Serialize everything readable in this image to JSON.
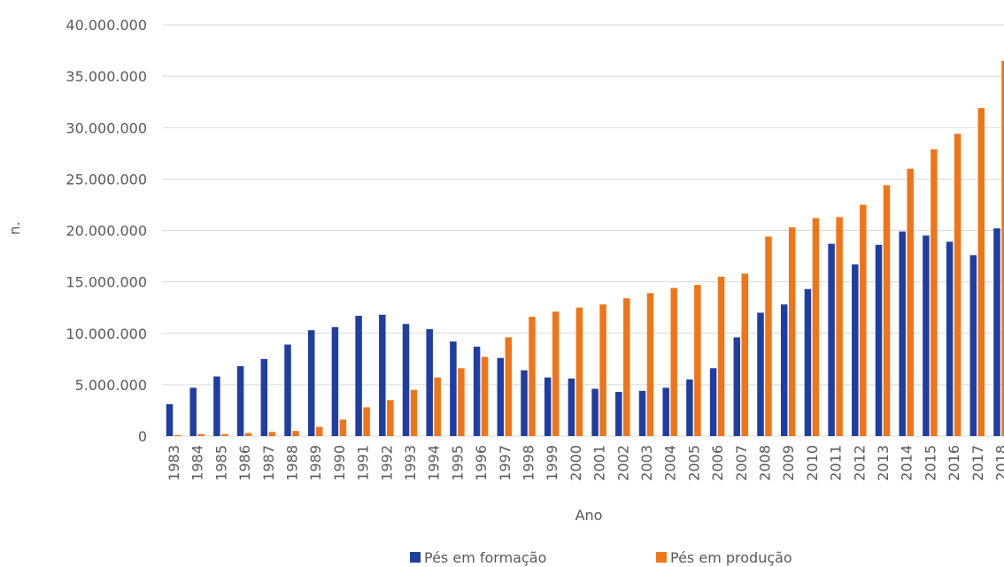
{
  "chart_data": {
    "type": "bar",
    "title": "",
    "xlabel": "Ano",
    "ylabel": "n.",
    "ylim": [
      0,
      40000000
    ],
    "yticks": [
      0,
      5000000,
      10000000,
      15000000,
      20000000,
      25000000,
      30000000,
      35000000,
      40000000
    ],
    "ytick_labels": [
      "0",
      "5.000.000",
      "10.000.000",
      "15.000.000",
      "20.000.000",
      "25.000.000",
      "30.000.000",
      "35.000.000",
      "40.000.000"
    ],
    "grid": true,
    "legend_position": "bottom",
    "categories": [
      "1983",
      "1984",
      "1985",
      "1986",
      "1987",
      "1988",
      "1989",
      "1990",
      "1991",
      "1992",
      "1993",
      "1994",
      "1995",
      "1996",
      "1997",
      "1998",
      "1999",
      "2000",
      "2001",
      "2002",
      "2003",
      "2004",
      "2005",
      "2006",
      "2007",
      "2008",
      "2009",
      "2010",
      "2011",
      "2012",
      "2013",
      "2014",
      "2015",
      "2016",
      "2017",
      "2018"
    ],
    "series": [
      {
        "name": "Pés em formação",
        "color": "#1f3fa0",
        "values": [
          3100000,
          4700000,
          5800000,
          6800000,
          7500000,
          8900000,
          10300000,
          10600000,
          11700000,
          11800000,
          10900000,
          10400000,
          9200000,
          8700000,
          7600000,
          6400000,
          5700000,
          5600000,
          4600000,
          4300000,
          4400000,
          4700000,
          5500000,
          6600000,
          9600000,
          12000000,
          12800000,
          14300000,
          18700000,
          16700000,
          18600000,
          19900000,
          19500000,
          18900000,
          17600000,
          20200000
        ]
      },
      {
        "name": "Pés em produção",
        "color": "#f07518",
        "values": [
          100000,
          200000,
          200000,
          300000,
          400000,
          500000,
          900000,
          1600000,
          2800000,
          3500000,
          4500000,
          5700000,
          6600000,
          7700000,
          9600000,
          11600000,
          12100000,
          12500000,
          12800000,
          13400000,
          13900000,
          14400000,
          14700000,
          15500000,
          15800000,
          19400000,
          20300000,
          21200000,
          21300000,
          22500000,
          24400000,
          26000000,
          27900000,
          29400000,
          31900000,
          36500000
        ]
      }
    ]
  }
}
